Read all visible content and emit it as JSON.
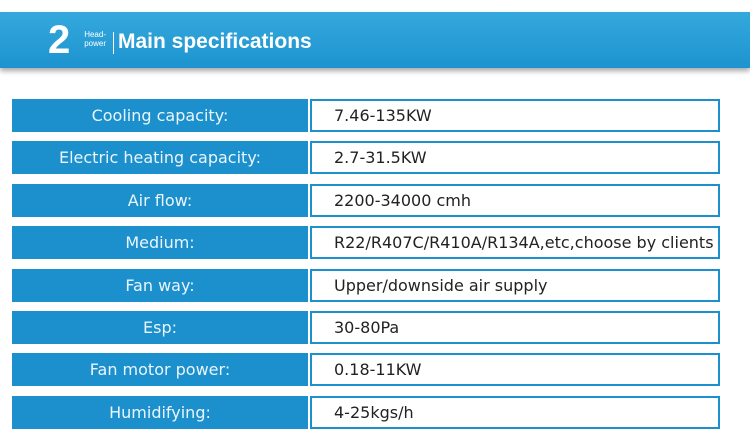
{
  "header": {
    "number": "2",
    "tag": [
      "Head-",
      "power"
    ],
    "title": "Main specifications"
  },
  "table": {
    "rows": [
      {
        "label": "Cooling capacity:",
        "value": "7.46-135KW"
      },
      {
        "label": "Electric heating capacity:",
        "value": "2.7-31.5KW"
      },
      {
        "label": "Air flow:",
        "value": "2200-34000 cmh"
      },
      {
        "label": "Medium:",
        "value": "R22/R407C/R410A/R134A,etc,choose by clients"
      },
      {
        "label": "Fan way:",
        "value": "Upper/downside air supply"
      },
      {
        "label": "Esp:",
        "value": "30-80Pa"
      },
      {
        "label": "Fan motor power:",
        "value": "0.18-11KW"
      },
      {
        "label": "Humidifying:",
        "value": "4-25kgs/h"
      }
    ]
  }
}
